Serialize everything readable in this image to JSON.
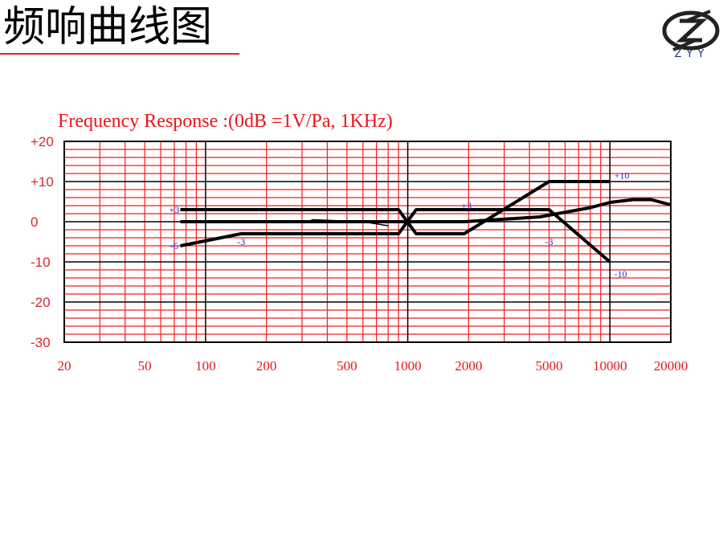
{
  "slide": {
    "title": "频响曲线图",
    "logo_text": "ZYY",
    "colors": {
      "grid": "#f11f1f",
      "axis_text": "#e8141c",
      "frame": "#000000",
      "curve": "#000000",
      "annotation": "#1a2fd4",
      "underline": "#d9262b"
    }
  },
  "chart_data": {
    "type": "line",
    "title": "Frequency Response :(0dB =1V/Pa, 1KHz)",
    "xlabel": "",
    "ylabel": "",
    "x_scale": "log",
    "xlim": [
      20,
      20000
    ],
    "ylim": [
      -30,
      20
    ],
    "grid": true,
    "x_tick_labels": [
      "20",
      "50",
      "100",
      "200",
      "500",
      "1000",
      "2000",
      "5000",
      "10000",
      "20000"
    ],
    "y_tick_labels": [
      "+20",
      "+10",
      "0",
      "-10",
      "-20",
      "-30"
    ],
    "series": [
      {
        "x": [
          75,
          150,
          900,
          1000,
          1900,
          4500,
          8000,
          10000,
          13000,
          16000,
          20000
        ],
        "y": [
          0,
          0,
          0,
          0,
          0,
          1.2,
          3.5,
          4.8,
          5.5,
          5.5,
          4.2
        ]
      },
      {
        "x": [
          75,
          900,
          1100,
          1900,
          5000,
          10000
        ],
        "y": [
          3,
          3,
          -3,
          -3,
          10,
          10
        ]
      },
      {
        "x": [
          75,
          150,
          900,
          1100,
          5000,
          10000
        ],
        "y": [
          -6,
          -3,
          -3,
          3,
          3,
          -10
        ]
      },
      {
        "x": [
          320,
          340,
          600,
          800
        ],
        "y": [
          0,
          0.5,
          0,
          -1
        ]
      }
    ],
    "annotations": [
      {
        "text": "+3",
        "x": 70,
        "y": 3
      },
      {
        "text": "-6",
        "x": 70,
        "y": -6
      },
      {
        "text": "-3",
        "x": 150,
        "y": -5
      },
      {
        "text": "+3",
        "x": 1950,
        "y": 4
      },
      {
        "text": "-3",
        "x": 5000,
        "y": -5
      },
      {
        "text": "+10",
        "x": 10500,
        "y": 11.5
      },
      {
        "text": "-10",
        "x": 10500,
        "y": -13
      }
    ]
  }
}
